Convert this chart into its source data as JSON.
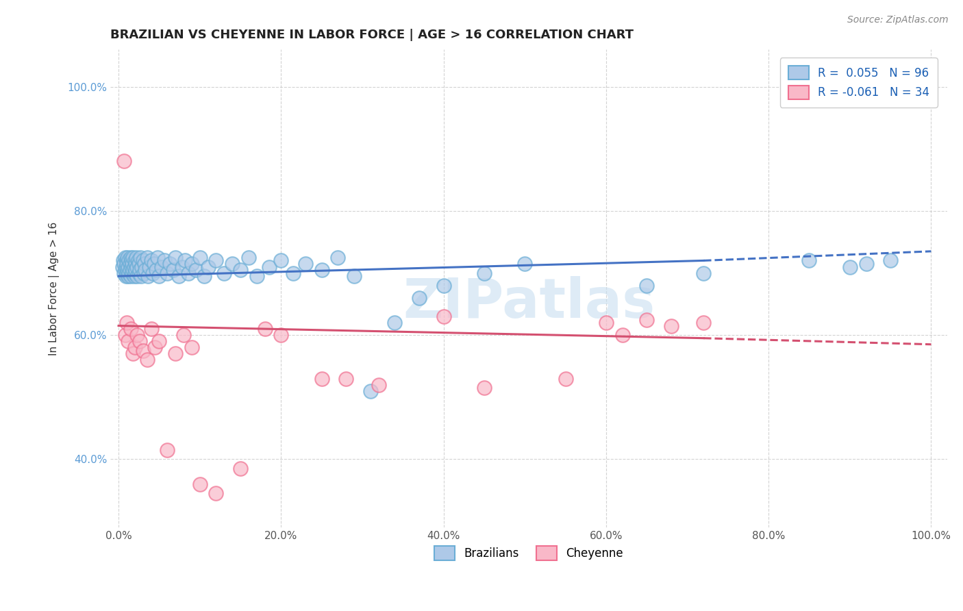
{
  "title": "BRAZILIAN VS CHEYENNE IN LABOR FORCE | AGE > 16 CORRELATION CHART",
  "source": "Source: ZipAtlas.com",
  "ylabel": "In Labor Force | Age > 16",
  "blue_R": 0.055,
  "blue_N": 96,
  "pink_R": -0.061,
  "pink_N": 34,
  "blue_edge_color": "#6baed6",
  "blue_face_color": "#aec9e8",
  "pink_edge_color": "#f07090",
  "pink_face_color": "#f9b8c8",
  "blue_line_color": "#4472c4",
  "pink_line_color": "#d45070",
  "watermark_color": "#c8dff0",
  "x_ticks": [
    0.0,
    0.2,
    0.4,
    0.6,
    0.8,
    1.0
  ],
  "x_tick_labels": [
    "0.0%",
    "20.0%",
    "40.0%",
    "60.0%",
    "80.0%",
    "100.0%"
  ],
  "y_ticks": [
    0.4,
    0.6,
    0.8,
    1.0
  ],
  "y_tick_labels": [
    "40.0%",
    "60.0%",
    "80.0%",
    "100.0%"
  ],
  "blue_scatter_x": [
    0.005,
    0.006,
    0.007,
    0.007,
    0.008,
    0.008,
    0.009,
    0.009,
    0.01,
    0.01,
    0.01,
    0.011,
    0.011,
    0.012,
    0.012,
    0.013,
    0.013,
    0.014,
    0.014,
    0.015,
    0.015,
    0.016,
    0.016,
    0.017,
    0.017,
    0.018,
    0.018,
    0.019,
    0.019,
    0.02,
    0.02,
    0.021,
    0.021,
    0.022,
    0.023,
    0.023,
    0.024,
    0.025,
    0.025,
    0.026,
    0.027,
    0.028,
    0.029,
    0.03,
    0.031,
    0.032,
    0.033,
    0.035,
    0.036,
    0.038,
    0.04,
    0.042,
    0.044,
    0.046,
    0.048,
    0.05,
    0.053,
    0.056,
    0.06,
    0.063,
    0.067,
    0.07,
    0.074,
    0.078,
    0.082,
    0.086,
    0.09,
    0.095,
    0.1,
    0.105,
    0.11,
    0.12,
    0.13,
    0.14,
    0.15,
    0.16,
    0.17,
    0.185,
    0.2,
    0.215,
    0.23,
    0.25,
    0.27,
    0.29,
    0.31,
    0.34,
    0.37,
    0.4,
    0.45,
    0.5,
    0.65,
    0.72,
    0.85,
    0.9,
    0.92,
    0.95
  ],
  "blue_scatter_y": [
    0.71,
    0.72,
    0.7,
    0.715,
    0.705,
    0.725,
    0.695,
    0.71,
    0.72,
    0.7,
    0.715,
    0.705,
    0.725,
    0.695,
    0.71,
    0.72,
    0.7,
    0.715,
    0.705,
    0.725,
    0.695,
    0.71,
    0.72,
    0.7,
    0.715,
    0.705,
    0.725,
    0.695,
    0.71,
    0.72,
    0.7,
    0.715,
    0.705,
    0.725,
    0.695,
    0.71,
    0.72,
    0.7,
    0.715,
    0.705,
    0.725,
    0.695,
    0.71,
    0.72,
    0.7,
    0.715,
    0.705,
    0.725,
    0.695,
    0.71,
    0.72,
    0.7,
    0.715,
    0.705,
    0.725,
    0.695,
    0.71,
    0.72,
    0.7,
    0.715,
    0.705,
    0.725,
    0.695,
    0.71,
    0.72,
    0.7,
    0.715,
    0.705,
    0.725,
    0.695,
    0.71,
    0.72,
    0.7,
    0.715,
    0.705,
    0.725,
    0.695,
    0.71,
    0.72,
    0.7,
    0.715,
    0.705,
    0.725,
    0.695,
    0.51,
    0.62,
    0.66,
    0.68,
    0.7,
    0.715,
    0.68,
    0.7,
    0.72,
    0.71,
    0.715,
    0.72
  ],
  "pink_scatter_x": [
    0.007,
    0.008,
    0.01,
    0.012,
    0.015,
    0.018,
    0.02,
    0.023,
    0.026,
    0.03,
    0.035,
    0.04,
    0.045,
    0.05,
    0.06,
    0.07,
    0.08,
    0.09,
    0.1,
    0.12,
    0.15,
    0.18,
    0.2,
    0.25,
    0.28,
    0.32,
    0.4,
    0.45,
    0.55,
    0.6,
    0.62,
    0.65,
    0.68,
    0.72
  ],
  "pink_scatter_y": [
    0.88,
    0.6,
    0.62,
    0.59,
    0.61,
    0.57,
    0.58,
    0.6,
    0.59,
    0.575,
    0.56,
    0.61,
    0.58,
    0.59,
    0.415,
    0.57,
    0.6,
    0.58,
    0.36,
    0.345,
    0.385,
    0.61,
    0.6,
    0.53,
    0.53,
    0.52,
    0.63,
    0.515,
    0.53,
    0.62,
    0.6,
    0.625,
    0.615,
    0.62
  ],
  "blue_trend_x": [
    0.0,
    0.72,
    1.0
  ],
  "blue_trend_y": [
    0.695,
    0.72,
    0.735
  ],
  "pink_trend_x": [
    0.0,
    0.72,
    1.0
  ],
  "pink_trend_y": [
    0.615,
    0.595,
    0.585
  ],
  "solid_cutoff": 0.72
}
